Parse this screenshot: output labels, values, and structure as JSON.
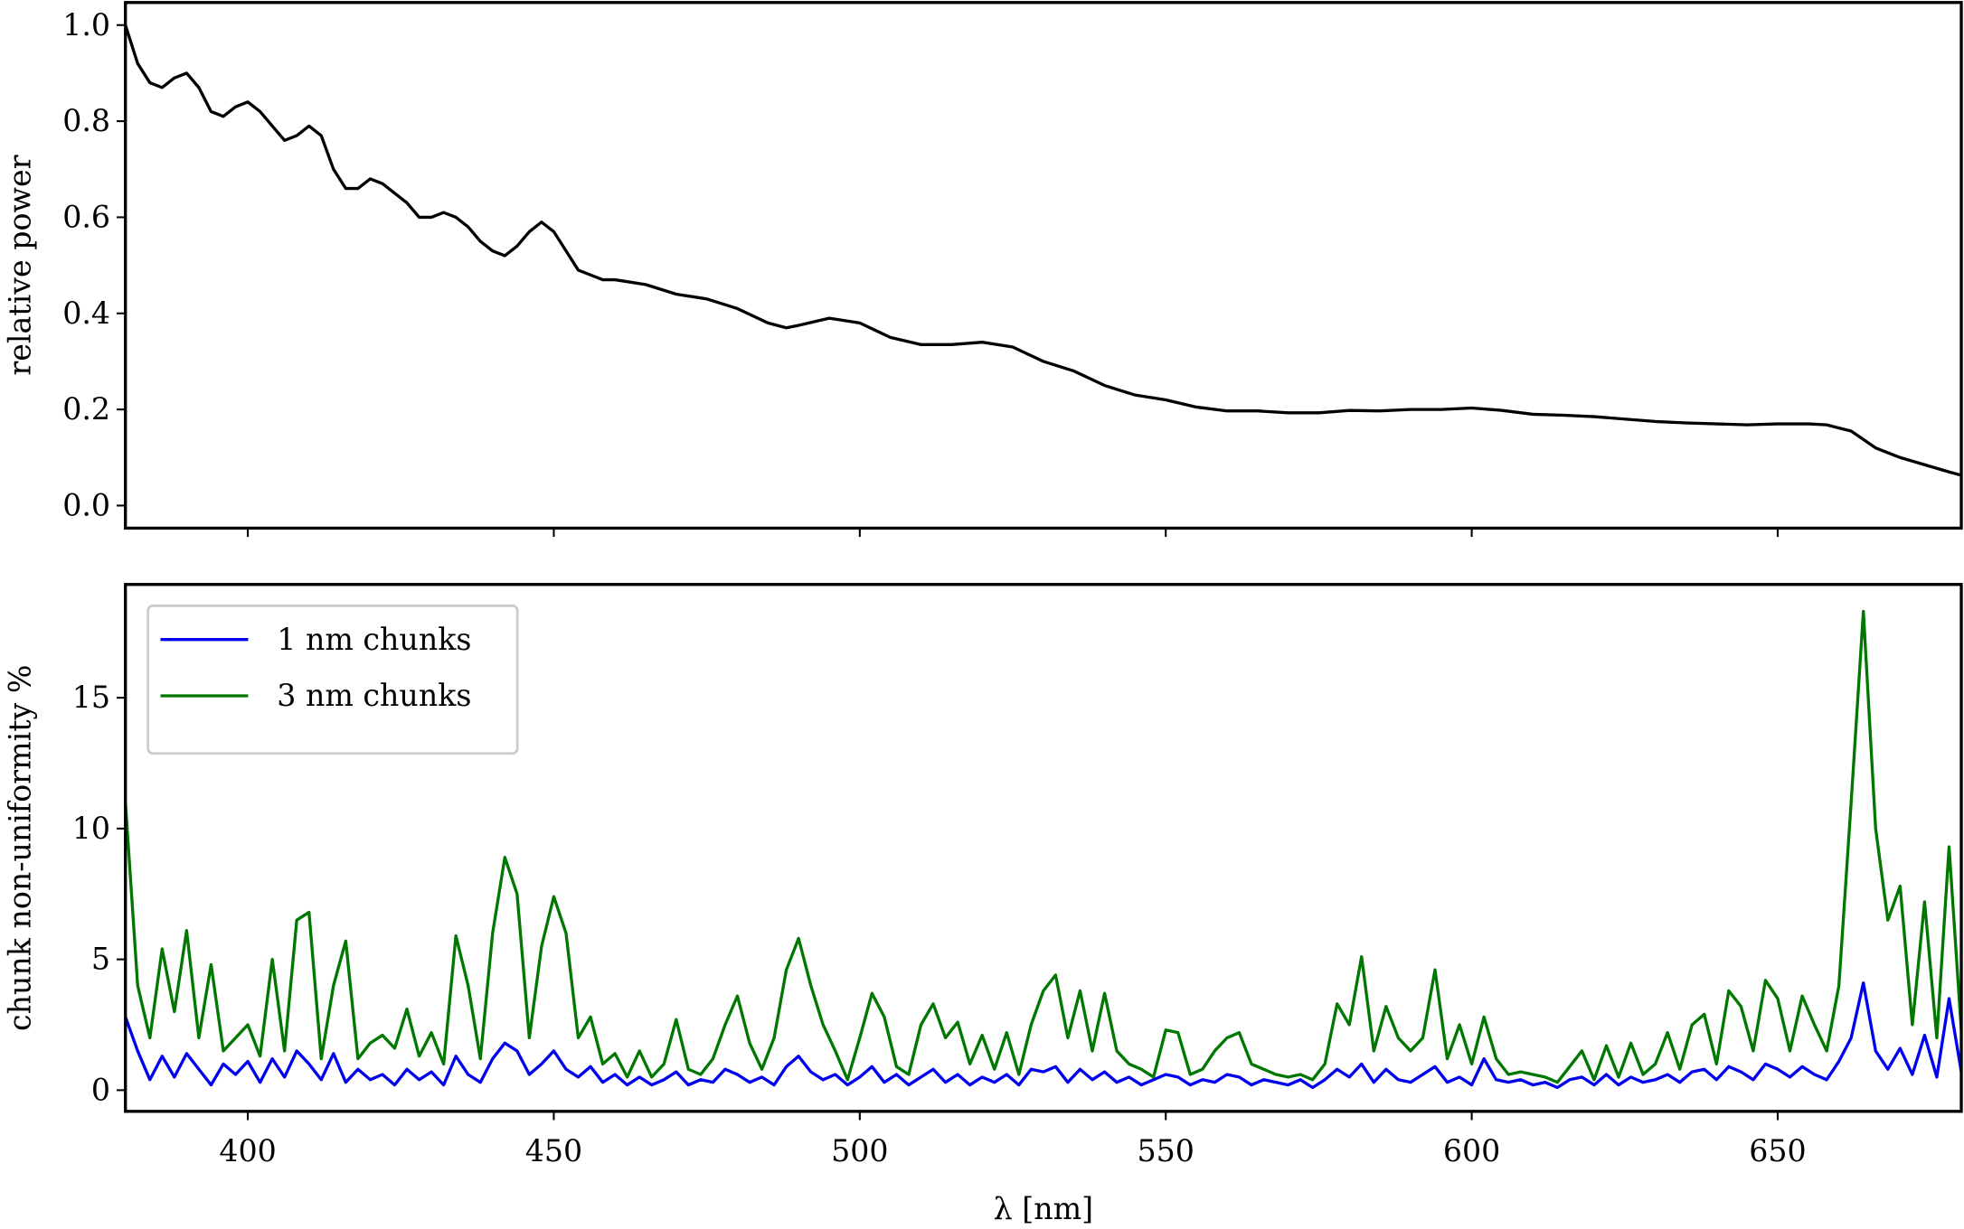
{
  "chart_data": [
    {
      "type": "line",
      "ylabel": "relative power",
      "xlim": [
        380,
        680
      ],
      "ylim": [
        -0.047,
        1.047
      ],
      "xticks": [
        400,
        450,
        500,
        550,
        600,
        650
      ],
      "show_xtick_labels": false,
      "yticks": [
        {
          "value": 0,
          "label": "0.0"
        },
        {
          "value": 0.2,
          "label": "0.2"
        },
        {
          "value": 0.4,
          "label": "0.4"
        },
        {
          "value": 0.6,
          "label": "0.6"
        },
        {
          "value": 0.8,
          "label": "0.8"
        },
        {
          "value": 1,
          "label": "1.0"
        }
      ],
      "x": [
        380,
        382,
        384,
        386,
        388,
        390,
        392,
        394,
        396,
        398,
        400,
        402,
        404,
        406,
        408,
        410,
        412,
        414,
        416,
        418,
        420,
        422,
        424,
        426,
        428,
        430,
        432,
        434,
        436,
        438,
        440,
        442,
        444,
        446,
        448,
        450,
        452,
        454,
        456,
        458,
        460,
        465,
        470,
        475,
        480,
        485,
        488,
        490,
        495,
        500,
        505,
        510,
        515,
        520,
        525,
        530,
        535,
        540,
        545,
        550,
        555,
        560,
        565,
        570,
        575,
        580,
        585,
        590,
        595,
        600,
        605,
        610,
        615,
        620,
        625,
        630,
        635,
        640,
        645,
        650,
        655,
        658,
        662,
        666,
        670,
        674,
        678,
        680
      ],
      "series": [
        {
          "color": "#000000",
          "values": [
            1.0,
            0.92,
            0.88,
            0.87,
            0.89,
            0.9,
            0.87,
            0.82,
            0.81,
            0.83,
            0.84,
            0.82,
            0.79,
            0.76,
            0.77,
            0.79,
            0.77,
            0.7,
            0.66,
            0.66,
            0.68,
            0.67,
            0.65,
            0.63,
            0.6,
            0.6,
            0.61,
            0.6,
            0.58,
            0.55,
            0.53,
            0.52,
            0.54,
            0.57,
            0.59,
            0.57,
            0.53,
            0.49,
            0.48,
            0.47,
            0.47,
            0.46,
            0.44,
            0.43,
            0.41,
            0.38,
            0.37,
            0.375,
            0.39,
            0.38,
            0.35,
            0.335,
            0.335,
            0.34,
            0.33,
            0.3,
            0.28,
            0.25,
            0.23,
            0.22,
            0.205,
            0.197,
            0.197,
            0.193,
            0.193,
            0.198,
            0.197,
            0.2,
            0.2,
            0.203,
            0.198,
            0.19,
            0.188,
            0.185,
            0.18,
            0.175,
            0.172,
            0.17,
            0.168,
            0.17,
            0.17,
            0.168,
            0.155,
            0.12,
            0.1,
            0.085,
            0.07,
            0.063
          ]
        }
      ]
    },
    {
      "type": "line",
      "ylabel": "chunk non-uniformity %",
      "xlabel": "λ [nm]",
      "xlim": [
        380,
        680
      ],
      "ylim": [
        -0.81,
        19.33
      ],
      "xticks": [
        400,
        450,
        500,
        550,
        600,
        650
      ],
      "show_xtick_labels": true,
      "yticks": [
        0,
        5,
        10,
        15
      ],
      "legend": "upper left",
      "x": [
        380,
        382,
        384,
        386,
        388,
        390,
        392,
        394,
        396,
        398,
        400,
        402,
        404,
        406,
        408,
        410,
        412,
        414,
        416,
        418,
        420,
        422,
        424,
        426,
        428,
        430,
        432,
        434,
        436,
        438,
        440,
        442,
        444,
        446,
        448,
        450,
        452,
        454,
        456,
        458,
        460,
        462,
        464,
        466,
        468,
        470,
        472,
        474,
        476,
        478,
        480,
        482,
        484,
        486,
        488,
        490,
        492,
        494,
        496,
        498,
        500,
        502,
        504,
        506,
        508,
        510,
        512,
        514,
        516,
        518,
        520,
        522,
        524,
        526,
        528,
        530,
        532,
        534,
        536,
        538,
        540,
        542,
        544,
        546,
        548,
        550,
        552,
        554,
        556,
        558,
        560,
        562,
        564,
        566,
        568,
        570,
        572,
        574,
        576,
        578,
        580,
        582,
        584,
        586,
        588,
        590,
        592,
        594,
        596,
        598,
        600,
        602,
        604,
        606,
        608,
        610,
        612,
        614,
        616,
        618,
        620,
        622,
        624,
        626,
        628,
        630,
        632,
        634,
        636,
        638,
        640,
        642,
        644,
        646,
        648,
        650,
        652,
        654,
        656,
        658,
        660,
        662,
        664,
        666,
        668,
        670,
        672,
        674,
        676,
        678,
        680
      ],
      "series": [
        {
          "name": "1 nm chunks",
          "color": "#0000ee",
          "values": [
            2.8,
            1.5,
            0.4,
            1.3,
            0.5,
            1.4,
            0.8,
            0.2,
            1.0,
            0.6,
            1.1,
            0.3,
            1.2,
            0.5,
            1.5,
            1.0,
            0.4,
            1.4,
            0.3,
            0.8,
            0.4,
            0.6,
            0.2,
            0.8,
            0.4,
            0.7,
            0.2,
            1.3,
            0.6,
            0.3,
            1.2,
            1.8,
            1.5,
            0.6,
            1.0,
            1.5,
            0.8,
            0.5,
            0.9,
            0.3,
            0.6,
            0.2,
            0.5,
            0.2,
            0.4,
            0.7,
            0.2,
            0.4,
            0.3,
            0.8,
            0.6,
            0.3,
            0.5,
            0.2,
            0.9,
            1.3,
            0.7,
            0.4,
            0.6,
            0.2,
            0.5,
            0.9,
            0.3,
            0.6,
            0.2,
            0.5,
            0.8,
            0.3,
            0.6,
            0.2,
            0.5,
            0.3,
            0.6,
            0.2,
            0.8,
            0.7,
            0.9,
            0.3,
            0.8,
            0.4,
            0.7,
            0.3,
            0.5,
            0.2,
            0.4,
            0.6,
            0.5,
            0.2,
            0.4,
            0.3,
            0.6,
            0.5,
            0.2,
            0.4,
            0.3,
            0.2,
            0.4,
            0.1,
            0.4,
            0.8,
            0.5,
            1.0,
            0.3,
            0.8,
            0.4,
            0.3,
            0.6,
            0.9,
            0.3,
            0.5,
            0.2,
            1.2,
            0.4,
            0.3,
            0.4,
            0.2,
            0.3,
            0.1,
            0.4,
            0.5,
            0.2,
            0.6,
            0.2,
            0.5,
            0.3,
            0.4,
            0.6,
            0.3,
            0.7,
            0.8,
            0.4,
            0.9,
            0.7,
            0.4,
            1.0,
            0.8,
            0.5,
            0.9,
            0.6,
            0.4,
            1.1,
            2.0,
            4.1,
            1.5,
            0.8,
            1.6,
            0.6,
            2.1,
            0.5,
            3.5,
            0.7
          ]
        },
        {
          "name": "3 nm chunks",
          "color": "#007700",
          "values": [
            11.0,
            4.0,
            2.0,
            5.4,
            3.0,
            6.1,
            2.0,
            4.8,
            1.5,
            2.0,
            2.5,
            1.3,
            5.0,
            1.5,
            6.5,
            6.8,
            1.2,
            4.0,
            5.7,
            1.2,
            1.8,
            2.1,
            1.6,
            3.1,
            1.3,
            2.2,
            1.0,
            5.9,
            4.0,
            1.2,
            6.0,
            8.9,
            7.5,
            2.0,
            5.5,
            7.4,
            6.0,
            2.0,
            2.8,
            1.0,
            1.4,
            0.5,
            1.5,
            0.5,
            1.0,
            2.7,
            0.8,
            0.6,
            1.2,
            2.5,
            3.6,
            1.8,
            0.8,
            2.0,
            4.6,
            5.8,
            4.0,
            2.5,
            1.5,
            0.4,
            2.0,
            3.7,
            2.8,
            0.9,
            0.6,
            2.5,
            3.3,
            2.0,
            2.6,
            1.0,
            2.1,
            0.8,
            2.2,
            0.6,
            2.5,
            3.8,
            4.4,
            2.0,
            3.8,
            1.5,
            3.7,
            1.5,
            1.0,
            0.8,
            0.5,
            2.3,
            2.2,
            0.6,
            0.8,
            1.5,
            2.0,
            2.2,
            1.0,
            0.8,
            0.6,
            0.5,
            0.6,
            0.4,
            1.0,
            3.3,
            2.5,
            5.1,
            1.5,
            3.2,
            2.0,
            1.5,
            2.0,
            4.6,
            1.2,
            2.5,
            1.0,
            2.8,
            1.2,
            0.6,
            0.7,
            0.6,
            0.5,
            0.3,
            0.9,
            1.5,
            0.4,
            1.7,
            0.5,
            1.8,
            0.6,
            1.0,
            2.2,
            0.8,
            2.5,
            2.9,
            1.0,
            3.8,
            3.2,
            1.5,
            4.2,
            3.5,
            1.5,
            3.6,
            2.5,
            1.5,
            4.0,
            11.0,
            18.3,
            10.0,
            6.5,
            7.8,
            2.5,
            7.2,
            2.0,
            9.3,
            2.3
          ]
        }
      ]
    }
  ]
}
